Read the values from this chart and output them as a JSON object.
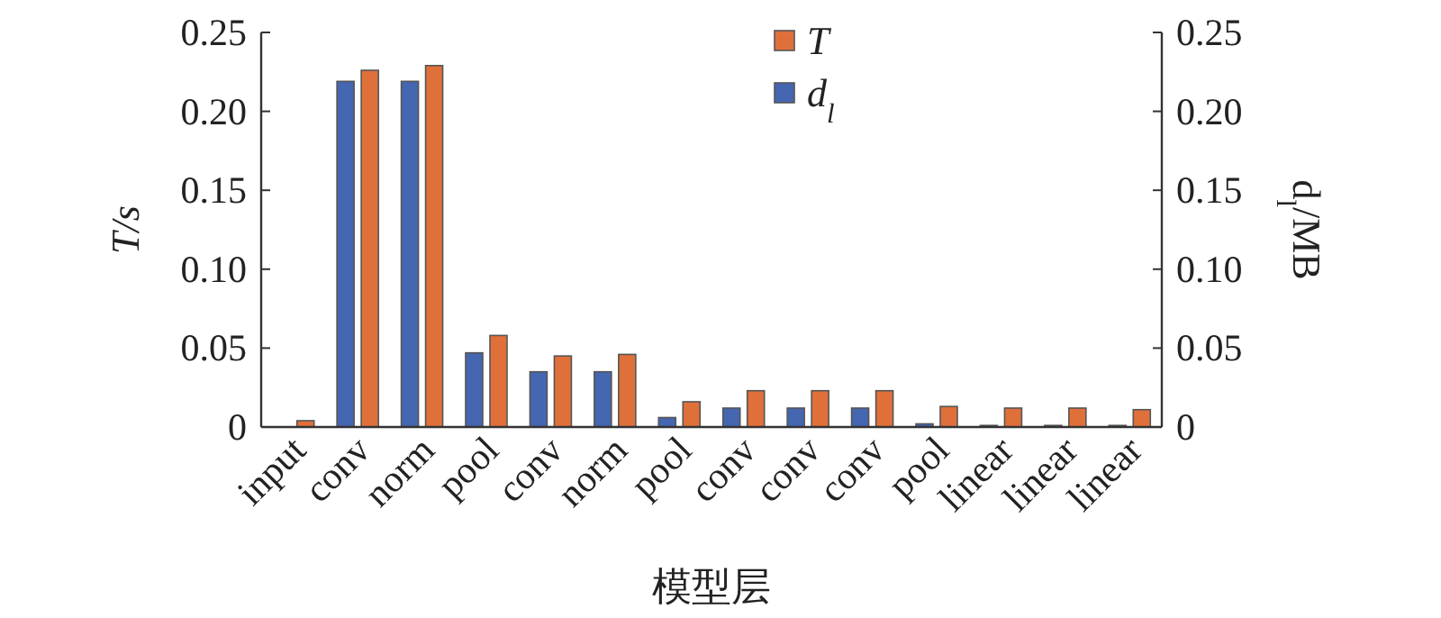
{
  "chart_data": {
    "type": "bar",
    "categories": [
      "input",
      "conv",
      "norm",
      "pool",
      "conv",
      "norm",
      "pool",
      "conv",
      "conv",
      "conv",
      "pool",
      "linear",
      "linear",
      "linear"
    ],
    "series": [
      {
        "name": "d$_{l}$",
        "color": "#4566b0",
        "axis": "y2",
        "values": [
          0,
          0.219,
          0.219,
          0.047,
          0.035,
          0.035,
          0.006,
          0.012,
          0.012,
          0.012,
          0.002,
          0.001,
          0.001,
          0.001
        ]
      },
      {
        "name": "T",
        "color": "#e0703a",
        "values": [
          0.004,
          0.226,
          0.229,
          0.058,
          0.045,
          0.046,
          0.016,
          0.023,
          0.023,
          0.023,
          0.013,
          0.012,
          0.012,
          0.011
        ]
      }
    ],
    "xlabel": "模型层",
    "ylabel": "T/s",
    "y2label": "d$_{l}$/MB",
    "ylim": [
      0,
      0.25
    ],
    "yticks": [
      0,
      0.05,
      {
        "value": 0.1,
        "label": "0.10"
      },
      0.15,
      {
        "value": 0.2,
        "label": "0.20"
      },
      0.25
    ],
    "y2lim": [
      0,
      0.25
    ],
    "y2ticks": [
      0,
      0.05,
      {
        "value": 0.1,
        "label": "0.10"
      },
      0.15,
      {
        "value": 0.2,
        "label": "0.20"
      },
      0.25
    ],
    "legend": "top right"
  }
}
